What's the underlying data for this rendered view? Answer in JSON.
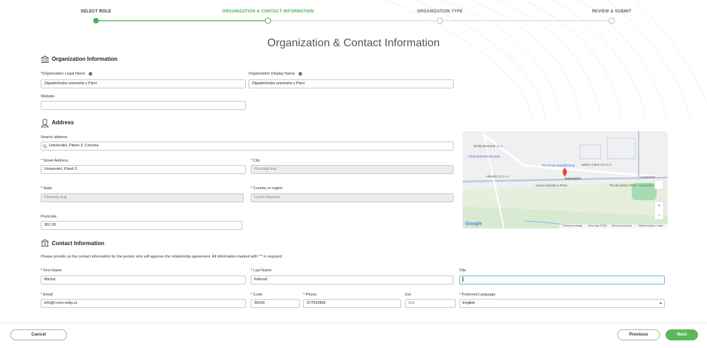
{
  "stepper": {
    "steps": [
      "SELECT ROLE",
      "ORGANIZATION & CONTACT INFORMATION",
      "ORGANIZATION TYPE",
      "REVIEW & SUBMIT"
    ]
  },
  "heading": "Organization & Contact Information",
  "organization": {
    "title": "Organization Information",
    "fields": [
      {
        "label": "*Organization Legal Name",
        "value": "Západočeská univerzita v Plzni"
      },
      {
        "label": "Organization Display Name",
        "value": "Západočeská univerzita v Plzni"
      },
      {
        "label": "Website"
      }
    ]
  },
  "address": {
    "title": "Address",
    "fields": [
      {
        "label": "Search address",
        "value": "Univerzitní, Pilsen 3, Czechia"
      },
      {
        "label": "* Street Address",
        "value": "Univerzitní, Plzeň 3"
      },
      {
        "label": "* City",
        "value": "Plzeňský kraj"
      },
      {
        "label": "* State",
        "value": "Plzeňský kraj"
      },
      {
        "label": "* Country or region",
        "value": "Czech Republic"
      },
      {
        "label": "Postcode",
        "value": "301 00"
      }
    ]
  },
  "map": {
    "labels": [
      "Brody Baumruk, s.r.o",
      "Vědeckotechnický park",
      "Pro Truck autopůjčovna",
      "Safran Cabin CZ s.r.o",
      "Akkodis CZ s.r.o",
      "Harley-Davidson Plzen",
      "Univerzitní",
      "Plochá dráha Plzeň - Univerzitní",
      "Univerzitní"
    ],
    "attribution": [
      "Google",
      "Klávesové zkratky",
      "Data map ©2025",
      "Smluvní podmínky",
      "Nahlásit chybu v mapě"
    ]
  },
  "contact": {
    "title": "Contact Information",
    "description": "Please provide us the contact information for the person who will approve the relationship agreement. All information marked with \"*\" is required.",
    "fields": [
      {
        "label": "* First Name",
        "value": "Michal"
      },
      {
        "label": "* Last Name",
        "value": "Petrovič"
      },
      {
        "label": "Title"
      },
      {
        "label": "* Email",
        "value": "info@i-com-unity.cz"
      },
      {
        "label": "* Code",
        "value": "30100"
      },
      {
        "label": "* Phone",
        "value": "377633966"
      },
      {
        "label": "Ext.",
        "placeholder": "Ext."
      },
      {
        "label": "* Preferred Language",
        "value": "English"
      }
    ]
  },
  "buttons": {
    "cancel": "Cancel",
    "previous": "Previous",
    "next": "Next"
  }
}
